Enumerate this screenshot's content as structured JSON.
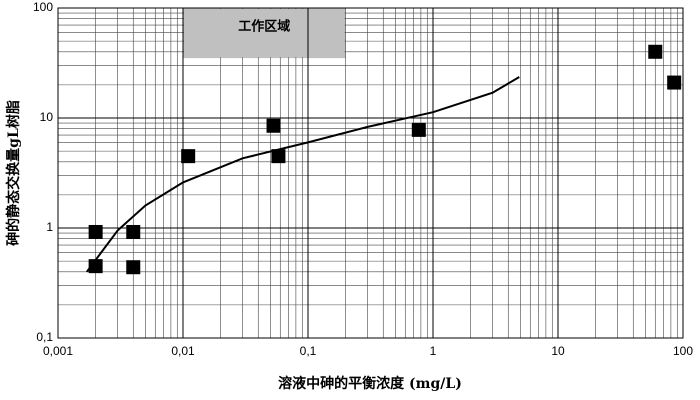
{
  "chart_data": {
    "type": "scatter",
    "x_label": "溶液中砷的平衡浓度  (mg/L)",
    "y_label": "砷的静态交换量gL树脂",
    "x": [
      0.002,
      0.002,
      0.004,
      0.004,
      0.011,
      0.053,
      0.058,
      0.77,
      60,
      85
    ],
    "values": [
      0.92,
      0.45,
      0.92,
      0.44,
      4.5,
      8.5,
      4.5,
      7.8,
      40,
      21
    ],
    "color": "#000000",
    "fit_curve": {
      "x": [
        0.0017,
        0.003,
        0.005,
        0.01,
        0.03,
        0.1,
        0.3,
        1,
        3,
        4.9
      ],
      "values": [
        0.4,
        0.95,
        1.6,
        2.6,
        4.3,
        6,
        8.3,
        11.3,
        17,
        23.6
      ],
      "color": "#000000"
    },
    "working_region": {
      "label": "工作区域",
      "xlim": [
        0.01,
        0.2
      ],
      "ylim": [
        35,
        100
      ],
      "color": "#c0c0c0"
    },
    "x_log": true,
    "y_log": true,
    "grid": true,
    "minor_grid": true,
    "xlim": [
      0.001,
      100
    ],
    "ylim": [
      0.1,
      100
    ],
    "xticks": [
      {
        "value": 0.001,
        "label": "0,001"
      },
      {
        "value": 0.01,
        "label": "0,01"
      },
      {
        "value": 0.1,
        "label": "0,1"
      },
      1,
      10,
      100
    ],
    "yticks": [
      {
        "value": 0.1,
        "label": "0,1"
      },
      1,
      10,
      100
    ]
  }
}
